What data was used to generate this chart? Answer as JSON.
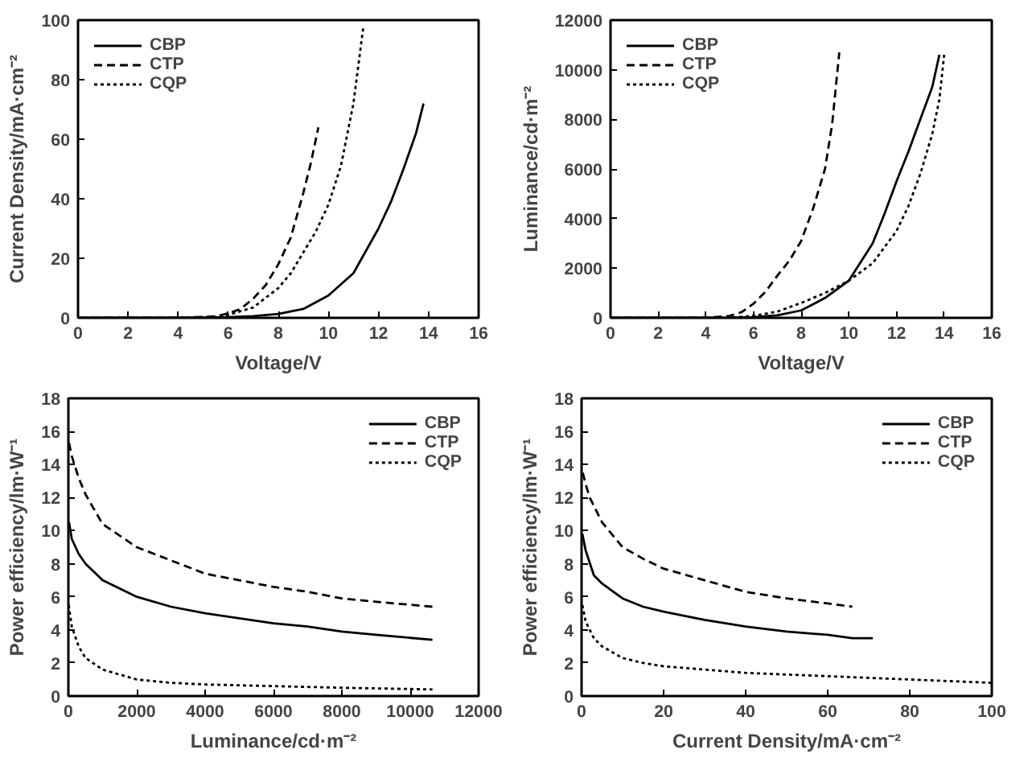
{
  "chart_data": [
    {
      "type": "line",
      "xlabel": "Voltage/V",
      "ylabel": "Current Density/mA·cm⁻²",
      "xlim": [
        0,
        16
      ],
      "ylim": [
        0,
        100
      ],
      "xticks": [
        0,
        2,
        4,
        6,
        8,
        10,
        12,
        14,
        16
      ],
      "yticks": [
        0,
        20,
        40,
        60,
        80,
        100
      ],
      "grid": false,
      "legend": "top left",
      "series": [
        {
          "name": "CBP",
          "color": "#000000",
          "line_style": "solid",
          "x": [
            0,
            4,
            6,
            7,
            8,
            9,
            10,
            11,
            12,
            12.5,
            13,
            13.5,
            13.8
          ],
          "values": [
            0,
            0,
            0.2,
            0.6,
            1.3,
            3,
            7.5,
            15,
            30,
            39,
            50,
            62,
            72
          ]
        },
        {
          "name": "CTP",
          "color": "#000000",
          "line_style": "dashed",
          "x": [
            0,
            4,
            5.5,
            6,
            6.5,
            7,
            7.5,
            8,
            8.5,
            9,
            9.3,
            9.6
          ],
          "values": [
            0,
            0,
            0.5,
            1.5,
            3,
            6.5,
            11,
            18,
            27,
            42,
            52,
            64
          ]
        },
        {
          "name": "CQP",
          "color": "#000000",
          "line_style": "dotted",
          "x": [
            0,
            4,
            5.5,
            6,
            7,
            8,
            8.5,
            9,
            9.5,
            10,
            10.5,
            11,
            11.4
          ],
          "values": [
            0,
            0,
            0.3,
            1,
            3.5,
            10,
            15,
            22,
            29,
            38,
            51,
            72,
            98
          ]
        }
      ]
    },
    {
      "type": "line",
      "xlabel": "Voltage/V",
      "ylabel": "Luminance/cd·m⁻²",
      "xlim": [
        0,
        16
      ],
      "ylim": [
        0,
        12000
      ],
      "xticks": [
        0,
        2,
        4,
        6,
        8,
        10,
        12,
        14,
        16
      ],
      "yticks": [
        0,
        2000,
        4000,
        6000,
        8000,
        10000,
        12000
      ],
      "grid": false,
      "legend": "top left",
      "series": [
        {
          "name": "CBP",
          "color": "#000000",
          "line_style": "solid",
          "x": [
            0,
            5,
            6,
            7,
            8,
            9,
            10,
            11,
            11.5,
            12,
            12.5,
            13,
            13.5,
            13.8
          ],
          "values": [
            0,
            0,
            30,
            100,
            300,
            800,
            1500,
            3000,
            4200,
            5500,
            6700,
            8000,
            9300,
            10600
          ]
        },
        {
          "name": "CTP",
          "color": "#000000",
          "line_style": "dashed",
          "x": [
            0,
            4,
            5,
            5.5,
            6,
            6.5,
            7,
            7.5,
            8,
            8.5,
            9,
            9.3,
            9.6
          ],
          "values": [
            0,
            0,
            80,
            230,
            570,
            1050,
            1700,
            2300,
            3100,
            4400,
            6000,
            7800,
            10700
          ]
        },
        {
          "name": "CQP",
          "color": "#000000",
          "line_style": "dotted",
          "x": [
            0,
            5,
            6,
            7,
            8,
            9,
            10,
            11,
            12,
            12.5,
            13,
            13.5,
            13.8,
            14
          ],
          "values": [
            0,
            0,
            80,
            250,
            600,
            1000,
            1500,
            2200,
            3500,
            4500,
            5800,
            7400,
            8800,
            10600
          ]
        }
      ]
    },
    {
      "type": "line",
      "xlabel": "Luminance/cd·m⁻²",
      "ylabel": "Power efficiency/lm·W⁻¹",
      "xlim": [
        0,
        12000
      ],
      "ylim": [
        0,
        18
      ],
      "xticks": [
        0,
        2000,
        4000,
        6000,
        8000,
        10000,
        12000
      ],
      "yticks": [
        0,
        2,
        4,
        6,
        8,
        10,
        12,
        14,
        16,
        18
      ],
      "grid": false,
      "legend": "top right",
      "series": [
        {
          "name": "CBP",
          "color": "#000000",
          "line_style": "solid",
          "x": [
            20,
            100,
            300,
            500,
            1000,
            2000,
            3000,
            4000,
            5000,
            6000,
            7000,
            8000,
            9000,
            10650
          ],
          "values": [
            10.5,
            9.5,
            8.6,
            8.0,
            7.0,
            6.0,
            5.4,
            5.0,
            4.7,
            4.4,
            4.2,
            3.9,
            3.7,
            3.4
          ]
        },
        {
          "name": "CTP",
          "color": "#000000",
          "line_style": "dashed",
          "x": [
            20,
            100,
            300,
            500,
            1000,
            2000,
            3000,
            4000,
            5000,
            6000,
            7000,
            8000,
            9000,
            10650
          ],
          "values": [
            15.3,
            14.5,
            13.2,
            12.2,
            10.4,
            9.0,
            8.2,
            7.4,
            7.0,
            6.6,
            6.3,
            5.9,
            5.7,
            5.4
          ]
        },
        {
          "name": "CQP",
          "color": "#000000",
          "line_style": "dotted",
          "x": [
            10,
            100,
            300,
            500,
            1000,
            2000,
            3000,
            4000,
            6000,
            8000,
            10650
          ],
          "values": [
            5.5,
            4.2,
            3.0,
            2.3,
            1.6,
            1.0,
            0.8,
            0.7,
            0.6,
            0.5,
            0.4
          ]
        }
      ]
    },
    {
      "type": "line",
      "xlabel": "Current Density/mA·cm⁻²",
      "ylabel": "Power efficiency/lm·W⁻¹",
      "xlim": [
        0,
        100
      ],
      "ylim": [
        0,
        18
      ],
      "xticks": [
        0,
        20,
        40,
        60,
        80,
        100
      ],
      "yticks": [
        0,
        2,
        4,
        6,
        8,
        10,
        12,
        14,
        16,
        18
      ],
      "grid": false,
      "legend": "top right",
      "series": [
        {
          "name": "CBP",
          "color": "#000000",
          "line_style": "solid",
          "x": [
            0.2,
            1,
            3,
            5,
            10,
            15,
            20,
            30,
            40,
            50,
            60,
            66,
            71
          ],
          "values": [
            9.8,
            8.8,
            7.3,
            6.8,
            5.9,
            5.4,
            5.1,
            4.6,
            4.2,
            3.9,
            3.7,
            3.5,
            3.5
          ]
        },
        {
          "name": "CTP",
          "color": "#000000",
          "line_style": "dashed",
          "x": [
            0.3,
            1,
            2,
            5,
            10,
            15,
            20,
            30,
            40,
            50,
            60,
            66
          ],
          "values": [
            13.5,
            12.8,
            12,
            10.5,
            9,
            8.3,
            7.7,
            7.0,
            6.3,
            5.9,
            5.6,
            5.4
          ]
        },
        {
          "name": "CQP",
          "color": "#000000",
          "line_style": "dotted",
          "x": [
            0.2,
            1,
            3,
            5,
            10,
            15,
            20,
            30,
            40,
            50,
            60,
            70,
            80,
            90,
            100
          ],
          "values": [
            5.5,
            4.5,
            3.5,
            3.0,
            2.3,
            2.0,
            1.8,
            1.6,
            1.4,
            1.3,
            1.2,
            1.1,
            1.0,
            0.9,
            0.8
          ]
        }
      ]
    }
  ]
}
